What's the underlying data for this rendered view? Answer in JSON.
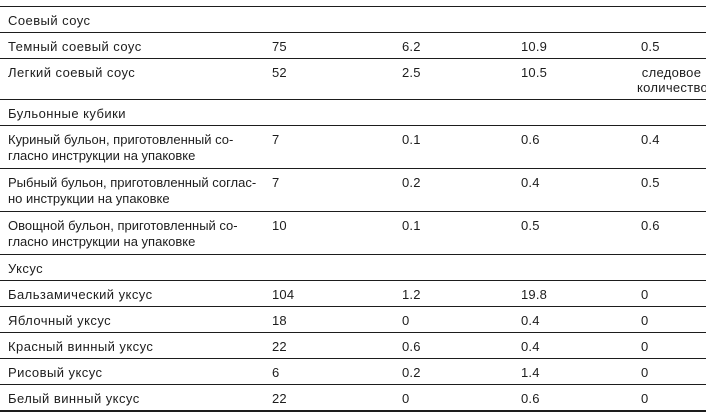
{
  "table": {
    "sections": [
      {
        "header": "Соевый соус",
        "rows": [
          {
            "name": "Темный соевый соус",
            "values": [
              "75",
              "6.2",
              "10.9",
              "0.5"
            ]
          },
          {
            "name": "Легкий соевый соус",
            "values": [
              "52",
              "2.5",
              "10.5",
              "следовое количество"
            ]
          }
        ]
      },
      {
        "header": "Бульонные кубики",
        "rows": [
          {
            "name": "Куриный бульон, приготовленный со-\nгласно инструкции на упаковке",
            "values": [
              "7",
              "0.1",
              "0.6",
              "0.4"
            ]
          },
          {
            "name": "Рыбный бульон, приготовленный соглас-\nно инструкции на упаковке",
            "values": [
              "7",
              "0.2",
              "0.4",
              "0.5"
            ]
          },
          {
            "name": "Овощной бульон, приготовленный со-\nгласно инструкции на упаковке",
            "values": [
              "10",
              "0.1",
              "0.5",
              "0.6"
            ]
          }
        ]
      },
      {
        "header": "Уксус",
        "rows": [
          {
            "name": "Бальзамический уксус",
            "values": [
              "104",
              "1.2",
              "19.8",
              "0"
            ]
          },
          {
            "name": "Яблочный уксус",
            "values": [
              "18",
              "0",
              "0.4",
              "0"
            ]
          },
          {
            "name": "Красный винный уксус",
            "values": [
              "22",
              "0.6",
              "0.4",
              "0"
            ]
          },
          {
            "name": "Рисовый уксус",
            "values": [
              "6",
              "0.2",
              "1.4",
              "0"
            ]
          },
          {
            "name": "Белый винный уксус",
            "values": [
              "22",
              "0",
              "0.6",
              "0"
            ]
          }
        ]
      }
    ]
  }
}
